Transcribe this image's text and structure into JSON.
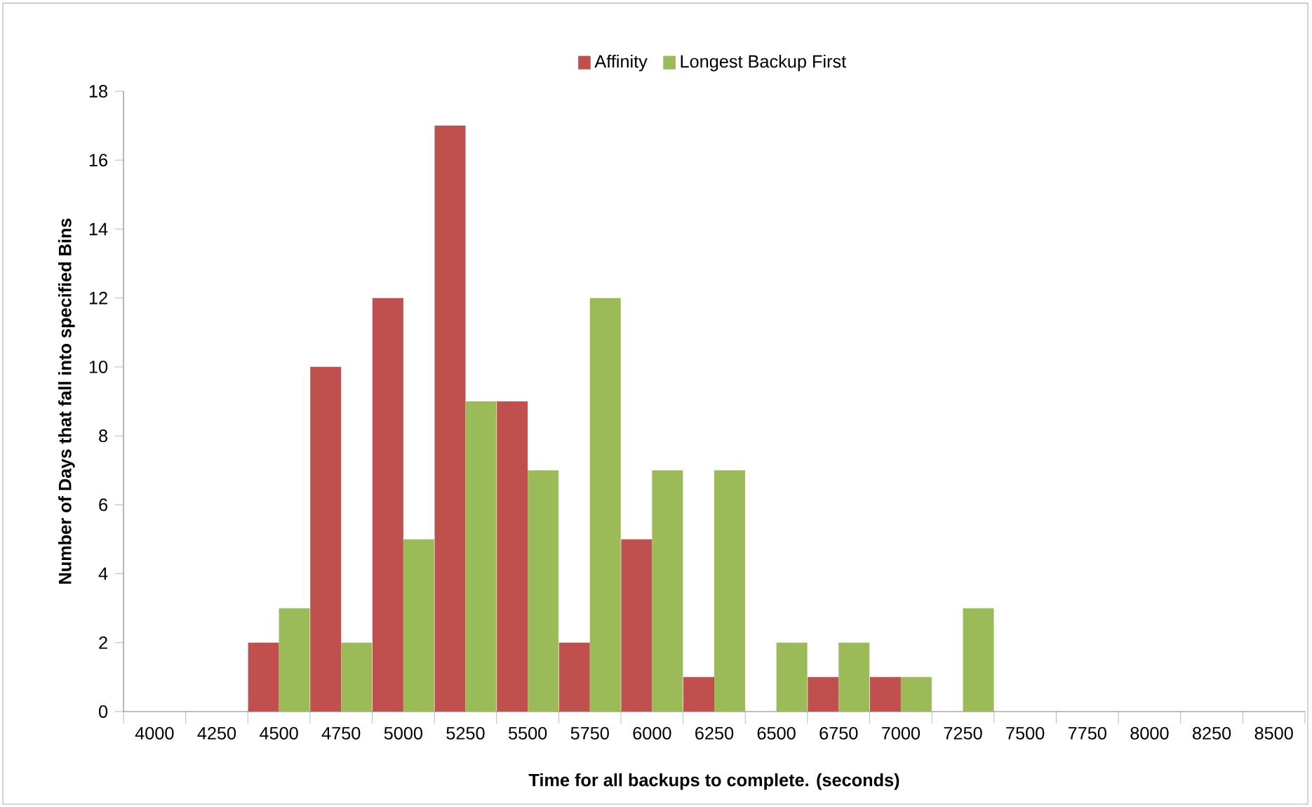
{
  "chart_data": {
    "type": "bar",
    "xlabel": "Time for all backups to complete. (seconds)",
    "ylabel": "Number of Days that fall into specified Bins",
    "categories": [
      "4000",
      "4250",
      "4500",
      "4750",
      "5000",
      "5250",
      "5500",
      "5750",
      "6000",
      "6250",
      "6500",
      "6750",
      "7000",
      "7250",
      "7500",
      "7750",
      "8000",
      "8250",
      "8500"
    ],
    "series": [
      {
        "name": "Affinity",
        "color": "#c0504d",
        "values": [
          0,
          0,
          2,
          10,
          12,
          17,
          9,
          2,
          5,
          1,
          0,
          1,
          1,
          0,
          0,
          0,
          0,
          0,
          0
        ]
      },
      {
        "name": "Longest Backup First",
        "color": "#9bbb59",
        "values": [
          0,
          0,
          3,
          2,
          5,
          9,
          7,
          12,
          7,
          7,
          2,
          2,
          1,
          3,
          0,
          0,
          0,
          0,
          0
        ]
      }
    ],
    "ylim": [
      0,
      18
    ],
    "yticks": [
      0,
      2,
      4,
      6,
      8,
      10,
      12,
      14,
      16,
      18
    ],
    "grid": false,
    "legend": "top"
  }
}
